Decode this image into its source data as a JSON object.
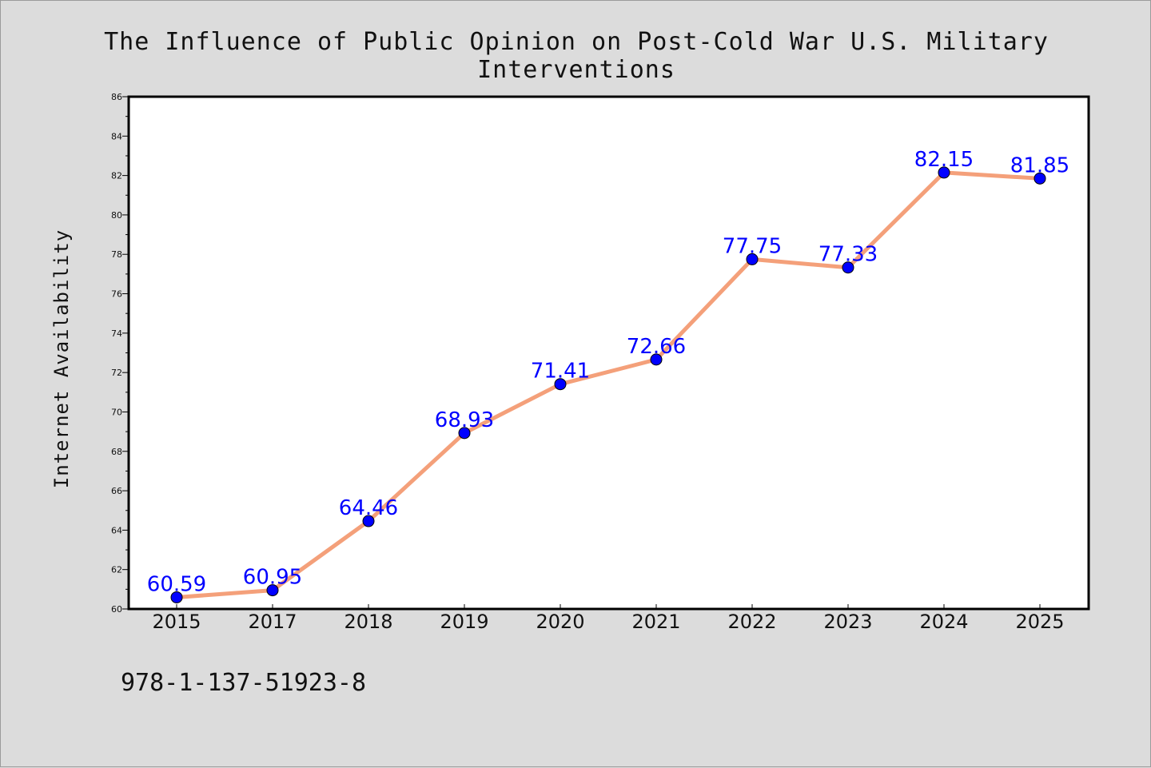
{
  "title": "The Influence of Public Opinion on Post-Cold War U.S. Military Interventions",
  "isbn": "978-1-137-51923-8",
  "colors": {
    "background": "#dcdcdc",
    "plot_background": "#ffffff",
    "line": "#f4a07a",
    "marker": "#0000ff",
    "label": "#0000ff"
  },
  "chart_data": {
    "type": "line",
    "title": "The Influence of Public Opinion on Post-Cold War U.S. Military Interventions",
    "xlabel": "",
    "ylabel": "Internet Availability",
    "categories": [
      "2015",
      "2017",
      "2018",
      "2019",
      "2020",
      "2021",
      "2022",
      "2023",
      "2024",
      "2025"
    ],
    "series": [
      {
        "values": [
          60.59,
          60.95,
          64.46,
          68.93,
          71.41,
          72.66,
          77.75,
          77.33,
          82.15,
          81.85
        ],
        "labels": [
          "60.59",
          "60.95",
          "64.46",
          "68.93",
          "71.41",
          "72.66",
          "77.75",
          "77.33",
          "82.15",
          "81.85"
        ]
      }
    ],
    "ylim": [
      60,
      86
    ],
    "yticks": [
      "60",
      "62",
      "64",
      "66",
      "68",
      "70",
      "72",
      "74",
      "76",
      "78",
      "80",
      "82",
      "84",
      "86"
    ],
    "grid": false,
    "legend": "none"
  }
}
